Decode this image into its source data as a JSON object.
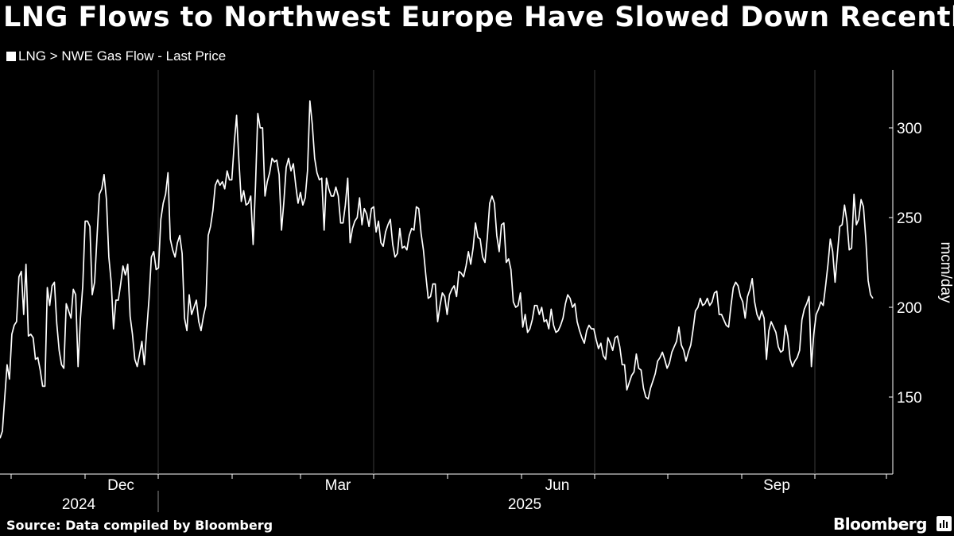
{
  "title": "LNG Flows to Northwest Europe Have Slowed Down Recently",
  "legend_label": "LNG > NWE Gas Flow - Last Price",
  "source": "Source: Data compiled by Bloomberg",
  "brand": "Bloomberg",
  "chart_data": {
    "type": "line",
    "title": "LNG Flows to Northwest Europe Have Slowed Down Recently",
    "ylabel": "mcm/day",
    "ylim": [
      115,
      332
    ],
    "yticks": [
      150,
      200,
      250,
      300
    ],
    "x_month_ticks": [
      "Dec",
      "Mar",
      "Jun",
      "Sep"
    ],
    "x_year_labels": [
      "2024",
      "2025"
    ],
    "grid": false,
    "series": [
      {
        "name": "LNG > NWE Gas Flow - Last Price",
        "x_start": "2024-10-17",
        "x_end": "2025-10-16",
        "values": [
          127,
          131,
          150,
          168,
          160,
          185,
          190,
          192,
          217,
          220,
          196,
          224,
          184,
          185,
          183,
          171,
          172,
          165,
          156,
          156,
          211,
          201,
          212,
          214,
          191,
          176,
          168,
          166,
          202,
          198,
          194,
          210,
          207,
          167,
          194,
          212,
          248,
          248,
          245,
          207,
          214,
          239,
          263,
          266,
          274,
          260,
          228,
          214,
          188,
          204,
          204,
          213,
          223,
          218,
          224,
          195,
          185,
          171,
          167,
          174,
          181,
          168,
          187,
          205,
          228,
          231,
          221,
          222,
          249,
          258,
          263,
          275,
          238,
          232,
          228,
          236,
          240,
          230,
          194,
          187,
          207,
          196,
          200,
          204,
          192,
          187,
          195,
          201,
          240,
          245,
          254,
          268,
          271,
          268,
          270,
          266,
          276,
          271,
          271,
          291,
          307,
          282,
          259,
          265,
          257,
          258,
          262,
          235,
          268,
          308,
          300,
          300,
          262,
          270,
          275,
          283,
          281,
          282,
          274,
          243,
          259,
          278,
          283,
          276,
          280,
          268,
          258,
          264,
          257,
          261,
          276,
          315,
          302,
          283,
          275,
          271,
          272,
          243,
          272,
          266,
          262,
          262,
          267,
          262,
          247,
          247,
          257,
          272,
          236,
          244,
          248,
          250,
          261,
          246,
          255,
          252,
          245,
          255,
          256,
          242,
          248,
          236,
          234,
          242,
          246,
          249,
          235,
          228,
          230,
          244,
          233,
          234,
          232,
          240,
          244,
          243,
          256,
          255,
          241,
          232,
          218,
          205,
          206,
          213,
          213,
          192,
          201,
          208,
          206,
          196,
          207,
          210,
          212,
          206,
          220,
          219,
          217,
          223,
          231,
          224,
          233,
          247,
          239,
          238,
          228,
          225,
          239,
          258,
          262,
          258,
          240,
          231,
          246,
          247,
          225,
          227,
          221,
          203,
          200,
          201,
          208,
          189,
          196,
          186,
          188,
          193,
          201,
          201,
          196,
          200,
          192,
          193,
          188,
          199,
          190,
          186,
          187,
          190,
          194,
          202,
          207,
          205,
          200,
          202,
          192,
          187,
          183,
          180,
          187,
          190,
          188,
          188,
          182,
          177,
          180,
          173,
          171,
          183,
          180,
          176,
          183,
          184,
          178,
          168,
          168,
          154,
          158,
          162,
          164,
          174,
          166,
          165,
          155,
          150,
          149,
          155,
          159,
          163,
          170,
          172,
          175,
          171,
          166,
          169,
          175,
          178,
          181,
          189,
          179,
          176,
          170,
          175,
          179,
          188,
          198,
          200,
          205,
          201,
          202,
          205,
          201,
          203,
          208,
          209,
          196,
          196,
          193,
          190,
          189,
          201,
          211,
          214,
          212,
          206,
          203,
          194,
          206,
          210,
          216,
          203,
          196,
          193,
          198,
          194,
          171,
          187,
          192,
          189,
          186,
          178,
          175,
          176,
          190,
          184,
          171,
          167,
          170,
          172,
          176,
          193,
          199,
          202,
          206,
          167,
          185,
          196,
          199,
          203,
          201,
          212,
          224,
          238,
          231,
          214,
          230,
          245,
          246,
          257,
          248,
          232,
          233,
          263,
          246,
          249,
          260,
          256,
          238,
          215,
          207,
          205
        ]
      }
    ]
  }
}
